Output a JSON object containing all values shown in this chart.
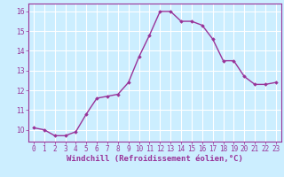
{
  "x": [
    0,
    1,
    2,
    3,
    4,
    5,
    6,
    7,
    8,
    9,
    10,
    11,
    12,
    13,
    14,
    15,
    16,
    17,
    18,
    19,
    20,
    21,
    22,
    23
  ],
  "y": [
    10.1,
    10.0,
    9.7,
    9.7,
    9.9,
    10.8,
    11.6,
    11.7,
    11.8,
    12.4,
    13.7,
    14.8,
    16.0,
    16.0,
    15.5,
    15.5,
    15.3,
    14.6,
    13.5,
    13.5,
    12.7,
    12.3,
    12.3,
    12.4
  ],
  "line_color": "#993399",
  "marker": "D",
  "marker_size": 1.8,
  "linewidth": 1.0,
  "xlim": [
    -0.5,
    23.5
  ],
  "ylim": [
    9.4,
    16.4
  ],
  "yticks": [
    10,
    11,
    12,
    13,
    14,
    15,
    16
  ],
  "xticks": [
    0,
    1,
    2,
    3,
    4,
    5,
    6,
    7,
    8,
    9,
    10,
    11,
    12,
    13,
    14,
    15,
    16,
    17,
    18,
    19,
    20,
    21,
    22,
    23
  ],
  "xlabel": "Windchill (Refroidissement éolien,°C)",
  "xlabel_fontsize": 6.5,
  "tick_fontsize": 5.5,
  "bg_color": "#cceeff",
  "grid_color": "#ffffff",
  "spine_color": "#993399",
  "tick_color": "#993399",
  "label_color": "#993399"
}
